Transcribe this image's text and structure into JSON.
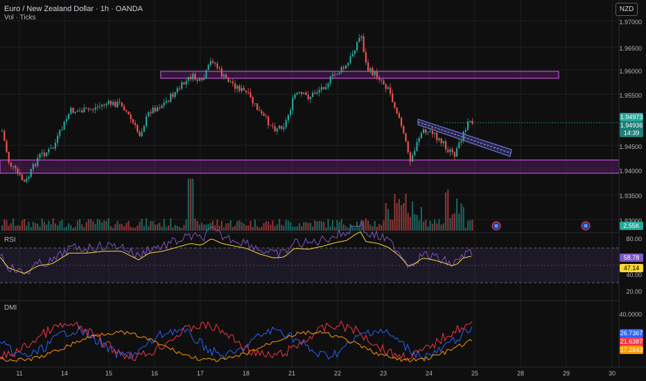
{
  "header": {
    "title": "Euro / New Zealand Dollar · 1h · OANDA",
    "subtitle": "Vol · Ticks",
    "currency": "NZD"
  },
  "price_axis": {
    "labels": [
      "1.97000",
      "1.96500",
      "1.96000",
      "1.95500",
      "1.94500",
      "1.94000",
      "1.93500",
      "1.93000"
    ],
    "current_price": "1.94973",
    "secondary_price": "1.94936",
    "countdown": "14:39",
    "volume": "2.55K"
  },
  "rsi": {
    "label": "RSI",
    "axis": [
      "80.00",
      "40.00",
      "20.00"
    ],
    "value": "58.78",
    "ma_value": "47.14"
  },
  "dmi": {
    "label": "DMI",
    "axis": [
      "40.0000"
    ],
    "plus_di": "26.7367",
    "minus_di": "21.6387",
    "adx": "17.2843"
  },
  "time_axis": {
    "labels": [
      "11",
      "14",
      "15",
      "16",
      "17",
      "18",
      "21",
      "22",
      "23",
      "24",
      "25",
      "28",
      "29",
      "30"
    ]
  },
  "colors": {
    "up": "#26a69a",
    "down": "#ef5350",
    "zone": "#9c27b0",
    "rsi": "#7e57c2",
    "rsi_ma": "#fdd835",
    "plus_di": "#2962ff",
    "minus_di": "#f23645",
    "adx": "#ff9800"
  },
  "icons": [
    "event-icon",
    "event-icon"
  ]
}
